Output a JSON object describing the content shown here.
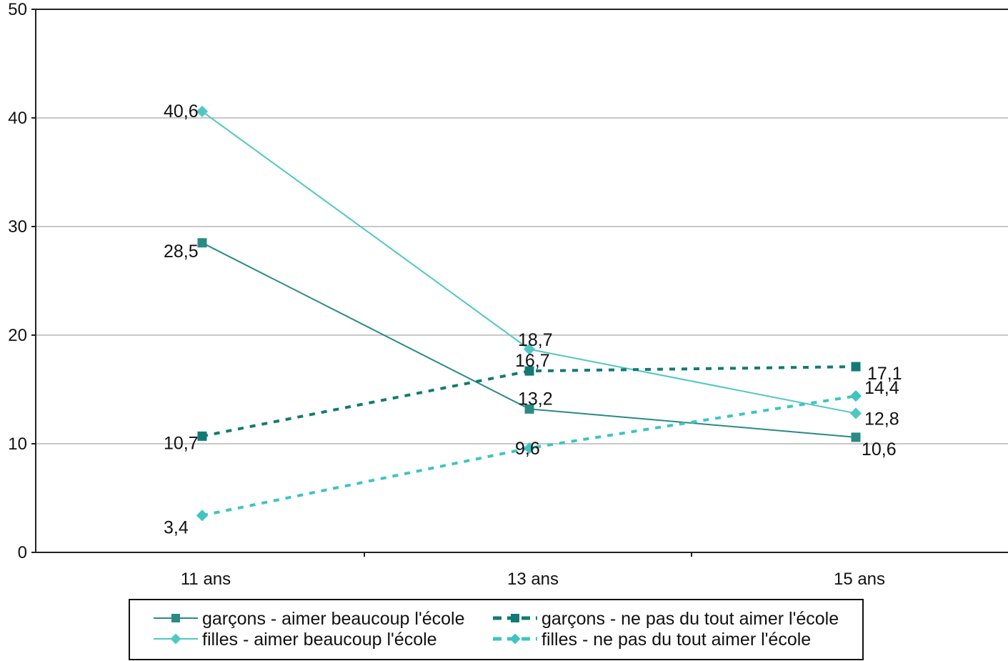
{
  "chart_data": {
    "type": "line",
    "categories": [
      "11 ans",
      "13 ans",
      "15 ans"
    ],
    "ylim": [
      0,
      50
    ],
    "yticks": [
      0,
      10,
      20,
      30,
      40,
      50
    ],
    "grid": true,
    "legend_position": "bottom",
    "series": [
      {
        "name": "garçons - aimer beaucoup l'école",
        "values": [
          28.5,
          13.2,
          10.6
        ],
        "labels": [
          "28,5",
          "13,2",
          "10,6"
        ],
        "color": "#2a8a84",
        "dashed": false,
        "marker": "square"
      },
      {
        "name": "filles - aimer beaucoup l'école",
        "values": [
          40.6,
          18.7,
          12.8
        ],
        "labels": [
          "40,6",
          "18,7",
          "12,8"
        ],
        "color": "#4fc8c4",
        "dashed": false,
        "marker": "diamond"
      },
      {
        "name": "garçons - ne pas du tout aimer l'école",
        "values": [
          10.7,
          16.7,
          17.1
        ],
        "labels": [
          "10,7",
          "16,7",
          "17,1"
        ],
        "color": "#127a74",
        "dashed": true,
        "marker": "square"
      },
      {
        "name": "filles - ne pas du tout aimer l'école",
        "values": [
          3.4,
          9.6,
          14.4
        ],
        "labels": [
          "3,4",
          "9,6",
          "14,4"
        ],
        "color": "#3ec4c2",
        "dashed": true,
        "marker": "diamond"
      }
    ]
  }
}
